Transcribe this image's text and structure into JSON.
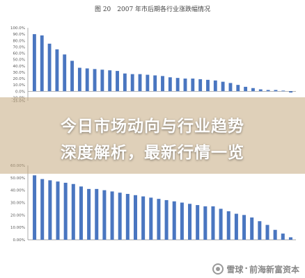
{
  "figure_titles": {
    "top": "图 20　2007 年市后期各行业涨跌幅情况"
  },
  "overlay": {
    "line1": "今日市场动向与行业趋势",
    "line2": "深度解析，最新行情一览"
  },
  "watermark": {
    "site": "雪球",
    "account": "前海新富资本"
  },
  "chart_data": [
    {
      "type": "bar",
      "title": "图 20　2007 年市后期各行业涨跌幅情况",
      "ylim": [
        -15,
        100
      ],
      "yticks": [
        "100.0%",
        "90.0%",
        "80.0%",
        "70.0%",
        "60.0%",
        "50.0%",
        "40.0%",
        "30.0%",
        "20.0%",
        "10.0%",
        "0.0%",
        "-10.0%",
        "-15.0%"
      ],
      "ytick_values": [
        100,
        90,
        80,
        70,
        60,
        50,
        40,
        30,
        20,
        10,
        0,
        -10,
        -15
      ],
      "grid": false,
      "color": "#4a76c0",
      "values": [
        90,
        88,
        75,
        66,
        58,
        48,
        37,
        36,
        35,
        34,
        33,
        32,
        28,
        27,
        27,
        26,
        25,
        24,
        22,
        21,
        20,
        20,
        19,
        18,
        17,
        15,
        13,
        10,
        7,
        5,
        3,
        2,
        2,
        1,
        -2
      ]
    },
    {
      "type": "bar",
      "ylim": [
        0,
        60
      ],
      "yticks": [
        "60.00%",
        "50.00%",
        "40.00%",
        "30.00%",
        "20.00%",
        "10.00%",
        "0.00%"
      ],
      "ytick_values": [
        60,
        50,
        40,
        30,
        20,
        10,
        0
      ],
      "grid": false,
      "color": "#4a76c0",
      "values": [
        52,
        49,
        48,
        47,
        46,
        45,
        43,
        41,
        41,
        40,
        39,
        38,
        37,
        36,
        35,
        34,
        33,
        32,
        31,
        30,
        29,
        28,
        27,
        27,
        25,
        23,
        21,
        20,
        18,
        15,
        12,
        8,
        5,
        2
      ]
    }
  ]
}
